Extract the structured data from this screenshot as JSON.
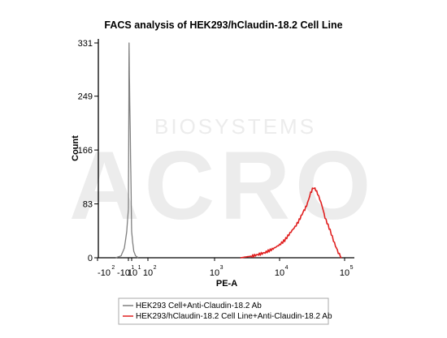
{
  "chart_data": {
    "type": "line",
    "title": "FACS analysis of HEK293/hClaudin-18.2 Cell Line",
    "xlabel": "PE-A",
    "ylabel": "Count",
    "x_scale": "biexponential",
    "x_ticks": [
      {
        "base": "-10",
        "exp": "2"
      },
      {
        "base": "-10",
        "exp": "1"
      },
      {
        "base": "10",
        "exp": "1"
      },
      {
        "base": "10",
        "exp": "2"
      },
      {
        "base": "10",
        "exp": "3"
      },
      {
        "base": "10",
        "exp": "4"
      },
      {
        "base": "10",
        "exp": "5"
      }
    ],
    "y_ticks": [
      "0",
      "83",
      "166",
      "249",
      "331"
    ],
    "ylim": [
      0,
      331
    ],
    "grid": false,
    "legend_position": "bottom-left",
    "series": [
      {
        "name": "HEK293 Cell+Anti-Claudin-18.2 Ab",
        "color": "#808080",
        "x": [
          -30,
          -20,
          -15,
          -12,
          -10,
          -9,
          -8,
          -7,
          -6,
          -5,
          -4,
          -3,
          -2,
          0,
          2,
          4,
          6,
          8,
          10,
          12,
          15,
          20,
          30
        ],
        "y": [
          0,
          3,
          15,
          40,
          75,
          110,
          160,
          220,
          285,
          331,
          310,
          280,
          255,
          215,
          170,
          130,
          95,
          65,
          40,
          25,
          10,
          3,
          0
        ]
      },
      {
        "name": "HEK293/hClaudin-18.2 Cell Line+Anti-Claudin-18.2 Ab",
        "color": "#e02020",
        "x": [
          2500,
          4000,
          6000,
          8000,
          10000,
          12000,
          15000,
          18000,
          20000,
          23000,
          26000,
          28000,
          30000,
          33000,
          36000,
          40000,
          45000,
          50000,
          60000,
          70000,
          80000,
          90000
        ],
        "y": [
          0,
          3,
          8,
          14,
          20,
          27,
          40,
          50,
          58,
          70,
          80,
          90,
          100,
          108,
          105,
          95,
          80,
          62,
          42,
          22,
          8,
          0
        ]
      }
    ]
  },
  "watermark": {
    "brand": "ACRO",
    "subtext": "BIOSYSTEMS",
    "color": "#ececec"
  }
}
